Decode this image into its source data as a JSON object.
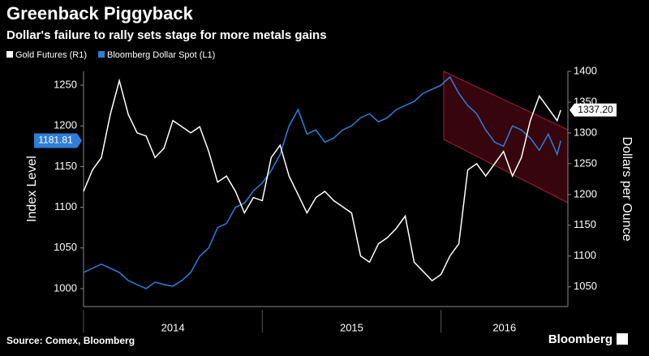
{
  "chart_data": {
    "type": "line",
    "title": "Greenback Piggyback",
    "subtitle": "Dollar's failure to rally sets stage for more metals gains",
    "y_label": "Index Level",
    "y2_label": "Dollars per Ounce",
    "source": "Source: Comex, Bloomberg",
    "brand": "Bloomberg",
    "x": [
      2014.0,
      2014.05,
      2014.1,
      2014.15,
      2014.2,
      2014.25,
      2014.3,
      2014.35,
      2014.4,
      2014.45,
      2014.5,
      2014.55,
      2014.6,
      2014.65,
      2014.7,
      2014.75,
      2014.8,
      2014.85,
      2014.9,
      2014.95,
      2015.0,
      2015.05,
      2015.1,
      2015.15,
      2015.2,
      2015.25,
      2015.3,
      2015.35,
      2015.4,
      2015.45,
      2015.5,
      2015.55,
      2015.6,
      2015.65,
      2015.7,
      2015.75,
      2015.8,
      2015.85,
      2015.9,
      2015.95,
      2016.0,
      2016.05,
      2016.1,
      2016.15,
      2016.2,
      2016.25,
      2016.3,
      2016.35,
      2016.4,
      2016.45,
      2016.5,
      2016.55,
      2016.6,
      2016.65,
      2016.67
    ],
    "xlim": [
      2014.0,
      2016.71
    ],
    "xticks": [
      {
        "value": 2014,
        "label": "2014"
      },
      {
        "value": 2015,
        "label": "2015"
      },
      {
        "value": 2016,
        "label": "2016"
      }
    ],
    "ylim": [
      978,
      1267
    ],
    "yticks": [
      1000,
      1050,
      1100,
      1150,
      1200,
      1250
    ],
    "y2lim": [
      1018,
      1400
    ],
    "y2ticks": [
      1050,
      1100,
      1150,
      1200,
      1250,
      1300,
      1350,
      1400
    ],
    "series": [
      {
        "name": "Gold Futures (R1)",
        "color": "#ffffff",
        "axis": "y2",
        "end_label": "1337.20",
        "values": [
          1205,
          1240,
          1260,
          1330,
          1385,
          1330,
          1300,
          1295,
          1260,
          1275,
          1320,
          1310,
          1300,
          1310,
          1270,
          1220,
          1230,
          1205,
          1170,
          1195,
          1190,
          1260,
          1280,
          1230,
          1200,
          1170,
          1195,
          1205,
          1190,
          1180,
          1170,
          1100,
          1090,
          1120,
          1130,
          1145,
          1165,
          1090,
          1075,
          1060,
          1070,
          1100,
          1120,
          1240,
          1250,
          1230,
          1250,
          1270,
          1230,
          1260,
          1320,
          1360,
          1340,
          1320,
          1337.2
        ]
      },
      {
        "name": "Bloomberg Dollar Spot (L1)",
        "color": "#2f7ed8",
        "axis": "y",
        "end_label": "1181.81",
        "values": [
          1020,
          1025,
          1030,
          1025,
          1020,
          1010,
          1005,
          1000,
          1008,
          1005,
          1003,
          1010,
          1020,
          1040,
          1050,
          1075,
          1080,
          1100,
          1105,
          1120,
          1130,
          1145,
          1165,
          1200,
          1220,
          1190,
          1195,
          1180,
          1185,
          1195,
          1200,
          1210,
          1215,
          1205,
          1210,
          1220,
          1225,
          1230,
          1240,
          1245,
          1250,
          1260,
          1240,
          1225,
          1215,
          1195,
          1180,
          1175,
          1200,
          1195,
          1185,
          1170,
          1190,
          1165,
          1181.81
        ]
      }
    ]
  }
}
